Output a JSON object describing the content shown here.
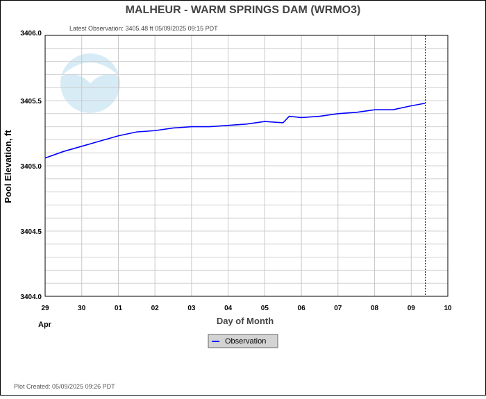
{
  "chart_data": {
    "type": "line",
    "title": "MALHEUR - WARM SPRINGS DAM  (WRMO3)",
    "subtitle": "Latest Observation: 3405.48 ft 05/09/2025 09:15 PDT",
    "xlabel": "Day of Month",
    "ylabel": "Pool Elevation, ft",
    "x_month_label": "Apr",
    "x_ticks": [
      "29",
      "30",
      "01",
      "02",
      "03",
      "04",
      "05",
      "06",
      "07",
      "08",
      "09",
      "10"
    ],
    "x_range": [
      "2025-04-29 00:00",
      "2025-05-10 00:00"
    ],
    "y_ticks": [
      "3404.0",
      "3404.5",
      "3405.0",
      "3405.5",
      "3406.0"
    ],
    "ylim": [
      3404.0,
      3406.0
    ],
    "grid": true,
    "latest_observation_marker": "2025-05-09 09:15",
    "legend_placement": "bottom-center",
    "footer": "Plot Created: 05/09/2025 09:26 PDT",
    "logo": "NOAA",
    "series": [
      {
        "name": "Observation",
        "color": "#0000ff",
        "points": [
          [
            "2025-04-29 00:00",
            3405.06
          ],
          [
            "2025-04-29 12:00",
            3405.11
          ],
          [
            "2025-04-30 00:00",
            3405.15
          ],
          [
            "2025-04-30 12:00",
            3405.19
          ],
          [
            "2025-05-01 00:00",
            3405.23
          ],
          [
            "2025-05-01 12:00",
            3405.26
          ],
          [
            "2025-05-02 00:00",
            3405.27
          ],
          [
            "2025-05-02 12:00",
            3405.29
          ],
          [
            "2025-05-03 00:00",
            3405.3
          ],
          [
            "2025-05-03 12:00",
            3405.3
          ],
          [
            "2025-05-04 00:00",
            3405.31
          ],
          [
            "2025-05-04 12:00",
            3405.32
          ],
          [
            "2025-05-05 00:00",
            3405.34
          ],
          [
            "2025-05-05 12:00",
            3405.33
          ],
          [
            "2025-05-05 16:00",
            3405.38
          ],
          [
            "2025-05-06 00:00",
            3405.37
          ],
          [
            "2025-05-06 12:00",
            3405.38
          ],
          [
            "2025-05-07 00:00",
            3405.4
          ],
          [
            "2025-05-07 12:00",
            3405.41
          ],
          [
            "2025-05-08 00:00",
            3405.43
          ],
          [
            "2025-05-08 12:00",
            3405.43
          ],
          [
            "2025-05-09 00:00",
            3405.46
          ],
          [
            "2025-05-09 09:15",
            3405.48
          ]
        ]
      }
    ]
  }
}
